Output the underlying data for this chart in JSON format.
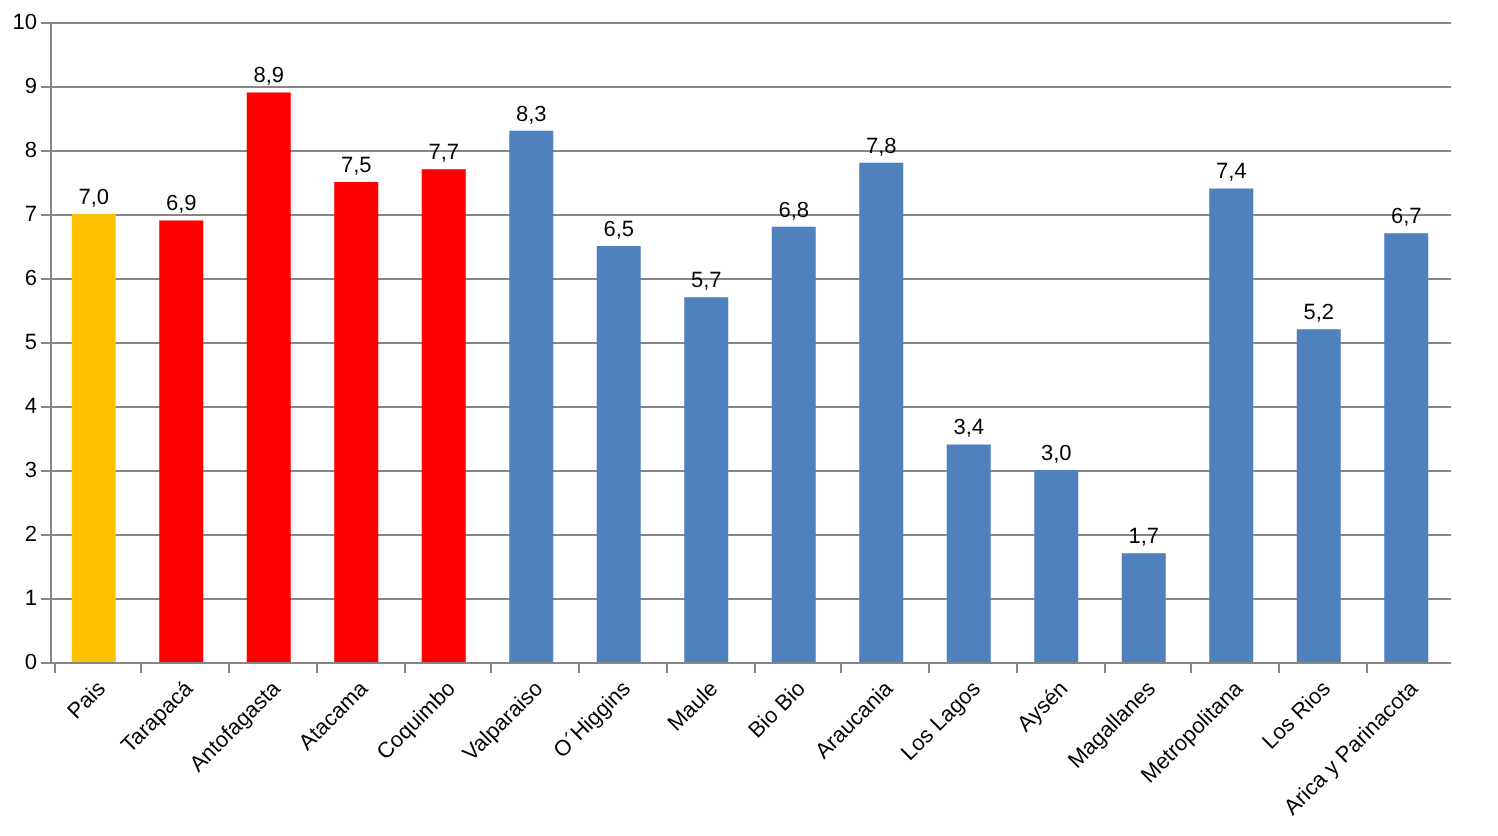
{
  "chart_data": {
    "type": "bar",
    "categories": [
      "Pais",
      "Tarapacá",
      "Antofagasta",
      "Atacama",
      "Coquimbo",
      "Valparaiso",
      "O´Higgins",
      "Maule",
      "Bio Bio",
      "Araucania",
      "Los Lagos",
      "Aysén",
      "Magallanes",
      "Metropolitana",
      "Los Rios",
      "Arica y Parinacota"
    ],
    "values": [
      7.0,
      6.9,
      8.9,
      7.5,
      7.7,
      8.3,
      6.5,
      5.7,
      6.8,
      7.8,
      3.4,
      3.0,
      1.7,
      7.4,
      5.2,
      6.7
    ],
    "value_labels": [
      "7,0",
      "6,9",
      "8,9",
      "7,5",
      "7,7",
      "8,3",
      "6,5",
      "5,7",
      "6,8",
      "7,8",
      "3,4",
      "3,0",
      "1,7",
      "7,4",
      "5,2",
      "6,7"
    ],
    "colors": [
      "#ffc000",
      "#ff0000",
      "#ff0000",
      "#ff0000",
      "#ff0000",
      "#4f81bd",
      "#4f81bd",
      "#4f81bd",
      "#4f81bd",
      "#4f81bd",
      "#4f81bd",
      "#4f81bd",
      "#4f81bd",
      "#4f81bd",
      "#4f81bd",
      "#4f81bd"
    ],
    "ylim": [
      0,
      10
    ],
    "yticks": [
      0,
      1,
      2,
      3,
      4,
      5,
      6,
      7,
      8,
      9,
      10
    ],
    "grid": "y"
  }
}
